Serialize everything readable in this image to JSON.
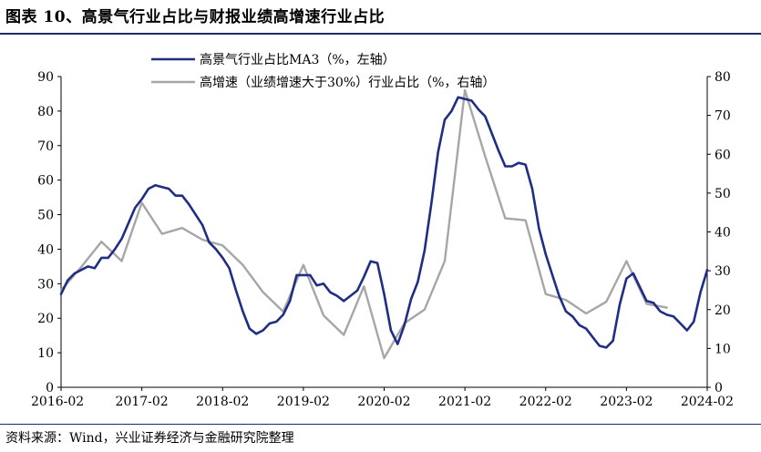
{
  "title": "图表 10、高景气行业占比与财报业绩高增速行业占比",
  "source": "资料来源：Wind，兴业证券经济与金融研究院整理",
  "colors": {
    "series1": "#1f2d84",
    "series2": "#a6a6a6",
    "rule": "#1f2a6b"
  },
  "chart_data": {
    "type": "line",
    "legend_position": "top",
    "grid": false,
    "x_tick_labels": [
      "2016-02",
      "2017-02",
      "2018-02",
      "2019-02",
      "2020-02",
      "2021-02",
      "2022-02",
      "2023-02",
      "2024-02"
    ],
    "x_range": [
      "2016-02",
      "2024-02"
    ],
    "y_left": {
      "range": [
        0,
        90
      ],
      "ticks": [
        0,
        10,
        20,
        30,
        40,
        50,
        60,
        70,
        80,
        90
      ]
    },
    "y_right": {
      "range": [
        0,
        80
      ],
      "ticks": [
        0,
        10,
        20,
        30,
        40,
        50,
        60,
        70,
        80
      ]
    },
    "series": [
      {
        "name": "高景气行业占比MA3（%，左轴）",
        "axis": "left",
        "points": [
          [
            "2016-02",
            27
          ],
          [
            "2016-03",
            31
          ],
          [
            "2016-04",
            33
          ],
          [
            "2016-05",
            34
          ],
          [
            "2016-06",
            35
          ],
          [
            "2016-07",
            34.5
          ],
          [
            "2016-08",
            37.5
          ],
          [
            "2016-09",
            37.5
          ],
          [
            "2016-10",
            40
          ],
          [
            "2016-11",
            43
          ],
          [
            "2016-12",
            47.5
          ],
          [
            "2017-01",
            52
          ],
          [
            "2017-02",
            54.5
          ],
          [
            "2017-03",
            57.5
          ],
          [
            "2017-04",
            58.5
          ],
          [
            "2017-05",
            58
          ],
          [
            "2017-06",
            57.5
          ],
          [
            "2017-07",
            55.5
          ],
          [
            "2017-08",
            55.5
          ],
          [
            "2017-09",
            53
          ],
          [
            "2017-10",
            50
          ],
          [
            "2017-11",
            47
          ],
          [
            "2017-12",
            42
          ],
          [
            "2018-01",
            40
          ],
          [
            "2018-02",
            37.5
          ],
          [
            "2018-03",
            34.5
          ],
          [
            "2018-04",
            28
          ],
          [
            "2018-05",
            22
          ],
          [
            "2018-06",
            17
          ],
          [
            "2018-07",
            15.5
          ],
          [
            "2018-08",
            16.5
          ],
          [
            "2018-09",
            18.5
          ],
          [
            "2018-10",
            19
          ],
          [
            "2018-11",
            21
          ],
          [
            "2018-12",
            25
          ],
          [
            "2019-01",
            32.5
          ],
          [
            "2019-02",
            32.5
          ],
          [
            "2019-03",
            32.5
          ],
          [
            "2019-04",
            29.5
          ],
          [
            "2019-05",
            30
          ],
          [
            "2019-06",
            27.5
          ],
          [
            "2019-07",
            26.5
          ],
          [
            "2019-08",
            25
          ],
          [
            "2019-09",
            26.5
          ],
          [
            "2019-10",
            28
          ],
          [
            "2019-11",
            32
          ],
          [
            "2019-12",
            36.5
          ],
          [
            "2020-01",
            36
          ],
          [
            "2020-02",
            27
          ],
          [
            "2020-03",
            16.5
          ],
          [
            "2020-04",
            12.5
          ],
          [
            "2020-05",
            18
          ],
          [
            "2020-06",
            25.5
          ],
          [
            "2020-07",
            30.5
          ],
          [
            "2020-08",
            39.5
          ],
          [
            "2020-09",
            53
          ],
          [
            "2020-10",
            68
          ],
          [
            "2020-11",
            77.5
          ],
          [
            "2020-12",
            80
          ],
          [
            "2021-01",
            84
          ],
          [
            "2021-02",
            83.5
          ],
          [
            "2021-03",
            83
          ],
          [
            "2021-04",
            80.5
          ],
          [
            "2021-05",
            78.5
          ],
          [
            "2021-06",
            73.5
          ],
          [
            "2021-07",
            68.5
          ],
          [
            "2021-08",
            64
          ],
          [
            "2021-09",
            64
          ],
          [
            "2021-10",
            65
          ],
          [
            "2021-11",
            64.5
          ],
          [
            "2021-12",
            57.5
          ],
          [
            "2022-01",
            46
          ],
          [
            "2022-02",
            38.5
          ],
          [
            "2022-03",
            32.5
          ],
          [
            "2022-04",
            26.5
          ],
          [
            "2022-05",
            22
          ],
          [
            "2022-06",
            20.5
          ],
          [
            "2022-07",
            18
          ],
          [
            "2022-08",
            17
          ],
          [
            "2022-09",
            14.5
          ],
          [
            "2022-10",
            12
          ],
          [
            "2022-11",
            11.5
          ],
          [
            "2022-12",
            13.5
          ],
          [
            "2023-01",
            24
          ],
          [
            "2023-02",
            31.5
          ],
          [
            "2023-03",
            33
          ],
          [
            "2023-04",
            29
          ],
          [
            "2023-05",
            25
          ],
          [
            "2023-06",
            24.5
          ],
          [
            "2023-07",
            22
          ],
          [
            "2023-08",
            21
          ],
          [
            "2023-09",
            20.5
          ],
          [
            "2023-10",
            18.5
          ],
          [
            "2023-11",
            16.5
          ],
          [
            "2023-12",
            19
          ],
          [
            "2024-01",
            27.5
          ],
          [
            "2024-02",
            34
          ]
        ]
      },
      {
        "name": "高增速（业绩增速大于30%）行业占比（%，右轴）",
        "axis": "right",
        "points": [
          [
            "2016-02",
            25
          ],
          [
            "2016-05",
            31
          ],
          [
            "2016-08",
            37.5
          ],
          [
            "2016-11",
            32.5
          ],
          [
            "2017-02",
            47.5
          ],
          [
            "2017-05",
            39.5
          ],
          [
            "2017-08",
            41
          ],
          [
            "2017-11",
            38
          ],
          [
            "2018-02",
            36.5
          ],
          [
            "2018-05",
            31.5
          ],
          [
            "2018-08",
            24.5
          ],
          [
            "2018-11",
            19.5
          ],
          [
            "2019-02",
            31.5
          ],
          [
            "2019-05",
            18.5
          ],
          [
            "2019-08",
            13.5
          ],
          [
            "2019-11",
            26
          ],
          [
            "2020-02",
            7.5
          ],
          [
            "2020-05",
            16.5
          ],
          [
            "2020-08",
            20
          ],
          [
            "2020-11",
            32.5
          ],
          [
            "2021-02",
            76.5
          ],
          [
            "2021-05",
            59.5
          ],
          [
            "2021-08",
            43.5
          ],
          [
            "2021-11",
            43
          ],
          [
            "2022-02",
            24
          ],
          [
            "2022-05",
            22.5
          ],
          [
            "2022-08",
            19
          ],
          [
            "2022-11",
            22
          ],
          [
            "2023-02",
            32.5
          ],
          [
            "2023-05",
            21.5
          ],
          [
            "2023-08",
            20.5
          ]
        ]
      }
    ]
  }
}
